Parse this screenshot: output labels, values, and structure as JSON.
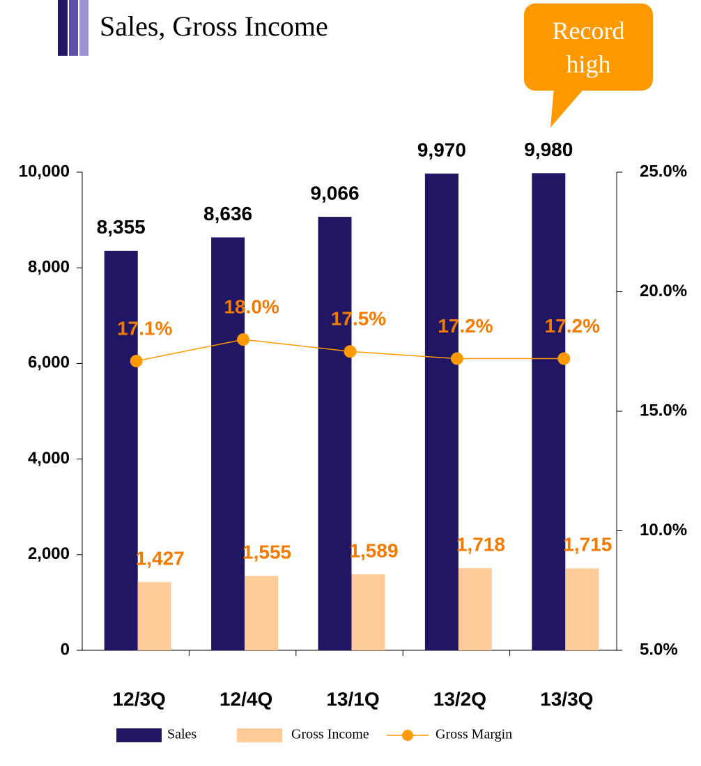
{
  "chart_data": {
    "type": "bar",
    "title": "Sales, Gross Income",
    "annotation": "Record high",
    "categories": [
      "12/3Q",
      "12/4Q",
      "13/1Q",
      "13/2Q",
      "13/3Q"
    ],
    "series": [
      {
        "name": "Sales",
        "color": "#211663",
        "values": [
          8355,
          8636,
          9066,
          9970,
          9980
        ],
        "value_labels": [
          "8,355",
          "8,636",
          "9,066",
          "9,970",
          "9,980"
        ]
      },
      {
        "name": "Gross Income",
        "color": "#ffcc99",
        "values": [
          1427,
          1555,
          1589,
          1718,
          1715
        ],
        "value_labels": [
          "1,427",
          "1,555",
          "1,589",
          "1,718",
          "1,715"
        ]
      },
      {
        "name": "Gross Margin",
        "color": "#ff9900",
        "type": "line",
        "axis": "y2",
        "values": [
          17.1,
          18.0,
          17.5,
          17.2,
          17.2
        ],
        "value_labels": [
          "17.1%",
          "18.0%",
          "17.5%",
          "17.2%",
          "17.2%"
        ]
      }
    ],
    "ylim": [
      0,
      10000
    ],
    "yticks": [
      0,
      {
        "value": 2000,
        "label": "2,000"
      },
      {
        "value": 4000,
        "label": "4,000"
      },
      {
        "value": 6000,
        "label": "6,000"
      },
      {
        "value": 8000,
        "label": "8,000"
      },
      {
        "value": 10000,
        "label": "10,000"
      }
    ],
    "y2lim": [
      5,
      25
    ],
    "y2ticks": [
      {
        "value": 5,
        "label": "5.0%"
      },
      {
        "value": 10,
        "label": "10.0%"
      },
      {
        "value": 15,
        "label": "15.0%"
      },
      {
        "value": 20,
        "label": "20.0%"
      },
      {
        "value": 25,
        "label": "25.0%"
      }
    ]
  }
}
